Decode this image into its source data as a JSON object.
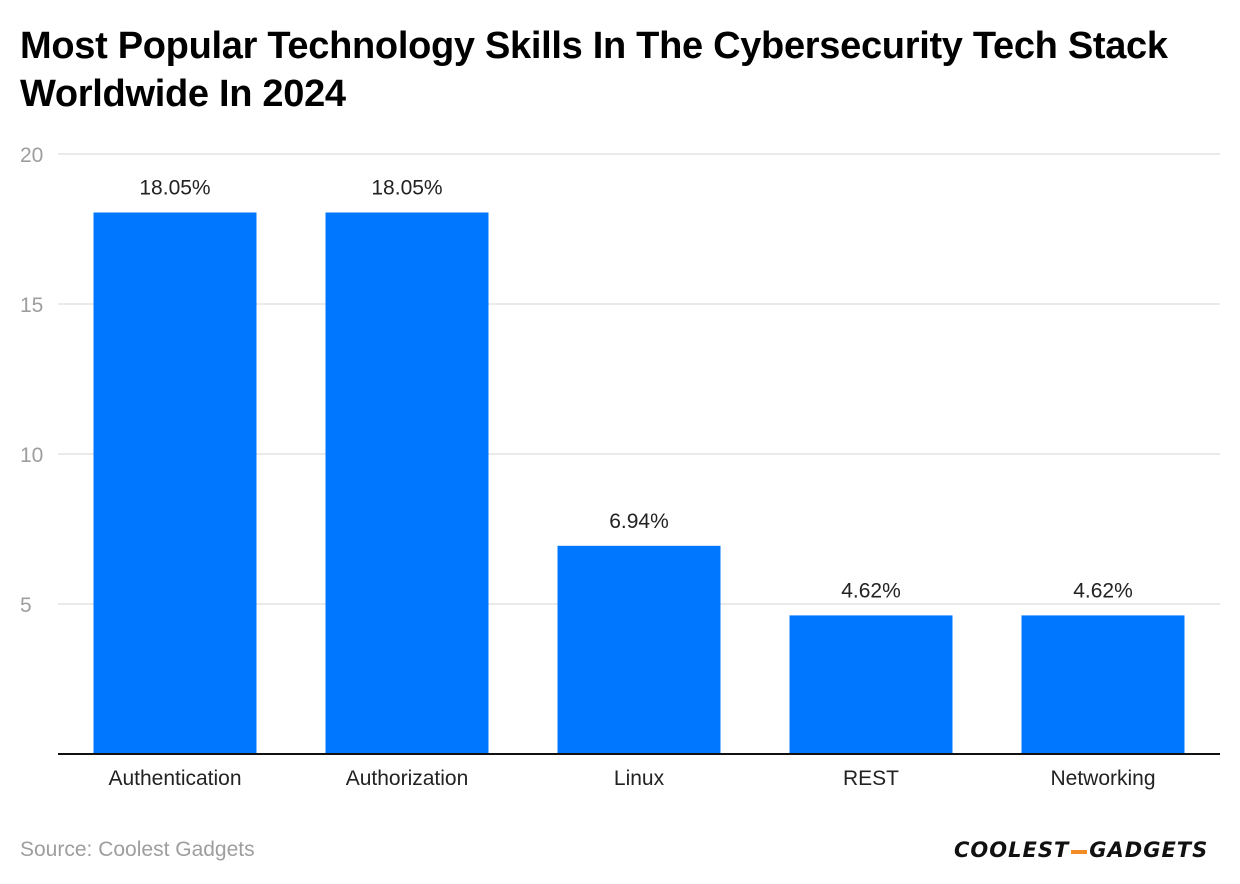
{
  "chart_data": {
    "type": "bar",
    "title": "Most Popular Technology Skills In The Cybersecurity Tech Stack Worldwide In 2024",
    "categories": [
      "Authentication",
      "Authorization",
      "Linux",
      "REST",
      "Networking"
    ],
    "values": [
      18.05,
      18.05,
      6.94,
      4.62,
      4.62
    ],
    "data_labels": [
      "18.05%",
      "18.05%",
      "6.94%",
      "4.62%",
      "4.62%"
    ],
    "yticks": [
      5,
      10,
      15,
      20
    ],
    "ytick_labels": [
      "5",
      "10",
      "15",
      "20"
    ],
    "ylim": [
      0,
      20
    ],
    "xlabel": "",
    "ylabel": "",
    "grid": true,
    "legend": "none"
  },
  "colors": {
    "bar": "#0077ff",
    "grid": "#e3e3e3",
    "axis": "#111111"
  },
  "footer": {
    "source": "Source: Coolest Gadgets",
    "logo_part1": "COOLEST",
    "logo_part2": "GADGETS"
  }
}
